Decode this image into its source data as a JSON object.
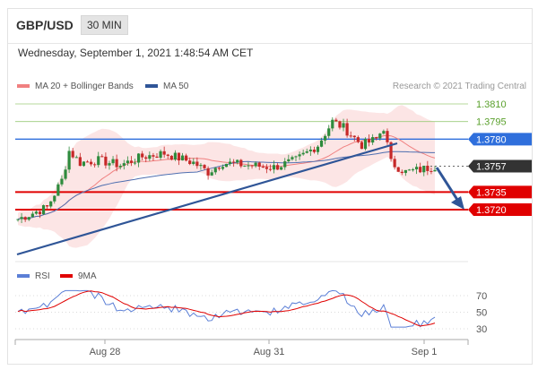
{
  "header": {
    "pair": "GBP/USD",
    "timeframe": "30 MIN"
  },
  "datetime": "Wednesday, September 1, 2021 1:48:54 AM CET",
  "legend": {
    "items": [
      {
        "label": "MA 20 + Bollinger Bands",
        "color": "#f08080"
      },
      {
        "label": "MA 50",
        "color": "#2f5597"
      }
    ],
    "credit": "Research © 2021 Trading Central"
  },
  "rsi_legend": [
    {
      "label": "RSI",
      "color": "#5b7fd6"
    },
    {
      "label": "9MA",
      "color": "#e00000"
    }
  ],
  "chart_data": {
    "type": "candlestick",
    "x_labels": [
      "Aug 28",
      "Aug 31",
      "Sep 1"
    ],
    "price_range": [
      1.37,
      1.382
    ],
    "levels": [
      {
        "value": 1.381,
        "label": "1.3810",
        "kind": "target",
        "color": "#5aa02c"
      },
      {
        "value": 1.3795,
        "label": "1.3795",
        "kind": "target",
        "color": "#5aa02c"
      },
      {
        "value": 1.378,
        "label": "1.3780",
        "kind": "pivot",
        "color": "#2f6fdc"
      },
      {
        "value": 1.3757,
        "label": "1.3757",
        "kind": "current",
        "color": "#333333"
      },
      {
        "value": 1.3735,
        "label": "1.3735",
        "kind": "support",
        "color": "#e00000"
      },
      {
        "value": 1.372,
        "label": "1.3720",
        "kind": "support",
        "color": "#e00000"
      }
    ],
    "rsi_ticks": [
      "70",
      "50",
      "30"
    ],
    "rsi_range": [
      20,
      80
    ]
  },
  "colors": {
    "up": "#2e8b3d",
    "down": "#c62828",
    "trend": "#2f5597",
    "band": "#fbdcdc"
  }
}
